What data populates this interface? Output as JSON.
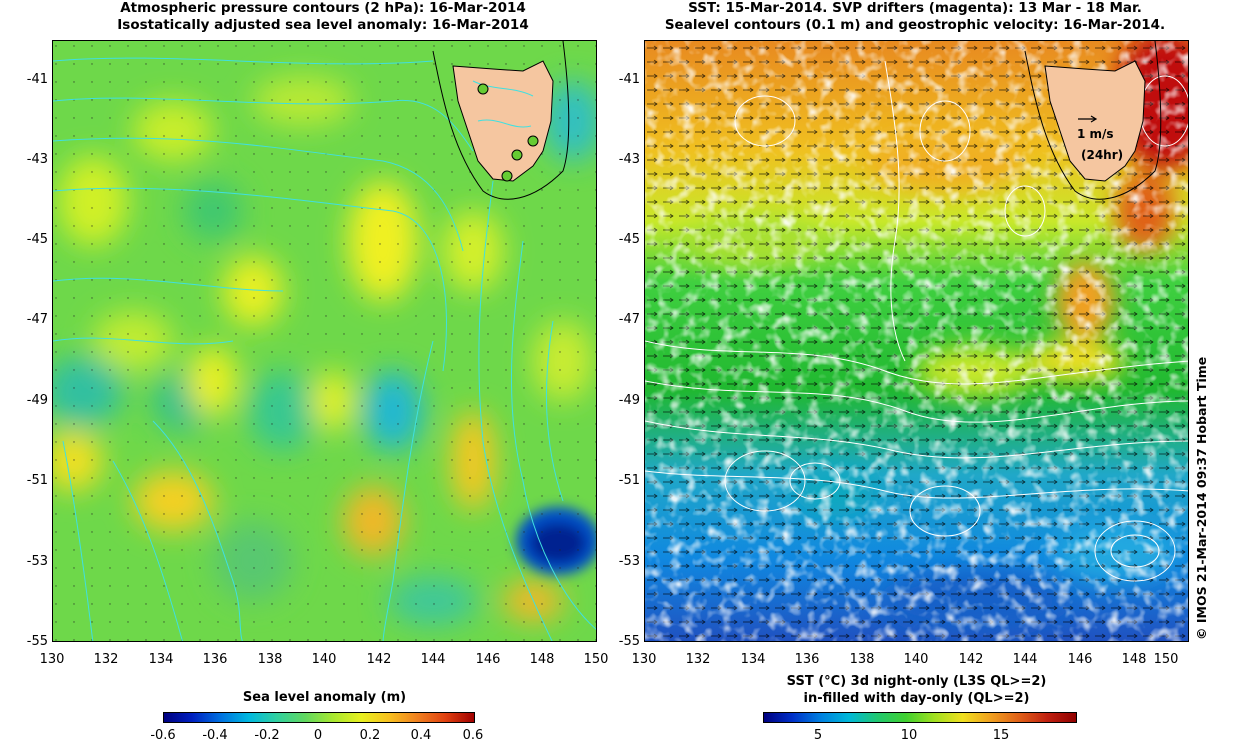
{
  "left_panel": {
    "title_line1": "Atmospheric pressure contours (2 hPa): 16-Mar-2014",
    "title_line2": "Isostatically adjusted sea level anomaly: 16-Mar-2014",
    "colorbar": {
      "label": "Sea level anomaly (m)",
      "ticks": [
        "-0.6",
        "-0.4",
        "-0.2",
        "0",
        "0.2",
        "0.4",
        "0.6"
      ],
      "range": [
        -0.6,
        0.6
      ]
    }
  },
  "right_panel": {
    "title_line1": "SST: 15-Mar-2014. SVP drifters (magenta): 13 Mar - 18 Mar.",
    "title_line2": "Sealevel contours (0.1 m) and geostrophic velocity: 16-Mar-2014.",
    "vector_key_speed": "1 m/s",
    "vector_key_time": "(24hr)",
    "colorbar": {
      "label_line1": "SST (°C)  3d night-only (L3S QL>=2)",
      "label_line2": "in-filled with day-only (QL>=2)",
      "ticks": [
        "5",
        "10",
        "15"
      ],
      "range": [
        2,
        19
      ]
    }
  },
  "axes": {
    "y_ticks": [
      "-41",
      "-43",
      "-45",
      "-47",
      "-49",
      "-51",
      "-53",
      "-55"
    ],
    "x_ticks": [
      "130",
      "132",
      "134",
      "136",
      "138",
      "140",
      "142",
      "144",
      "146",
      "148",
      "150"
    ],
    "lat_range": [
      -55,
      -40
    ],
    "lon_range": [
      130,
      150
    ]
  },
  "credit": "© IMOS 21-Mar-2014 09:37 Hobart Time",
  "colors": {
    "land": "#f5c6a0",
    "contour_cyan": "#40e0e0",
    "contour_white": "#ffffff"
  }
}
